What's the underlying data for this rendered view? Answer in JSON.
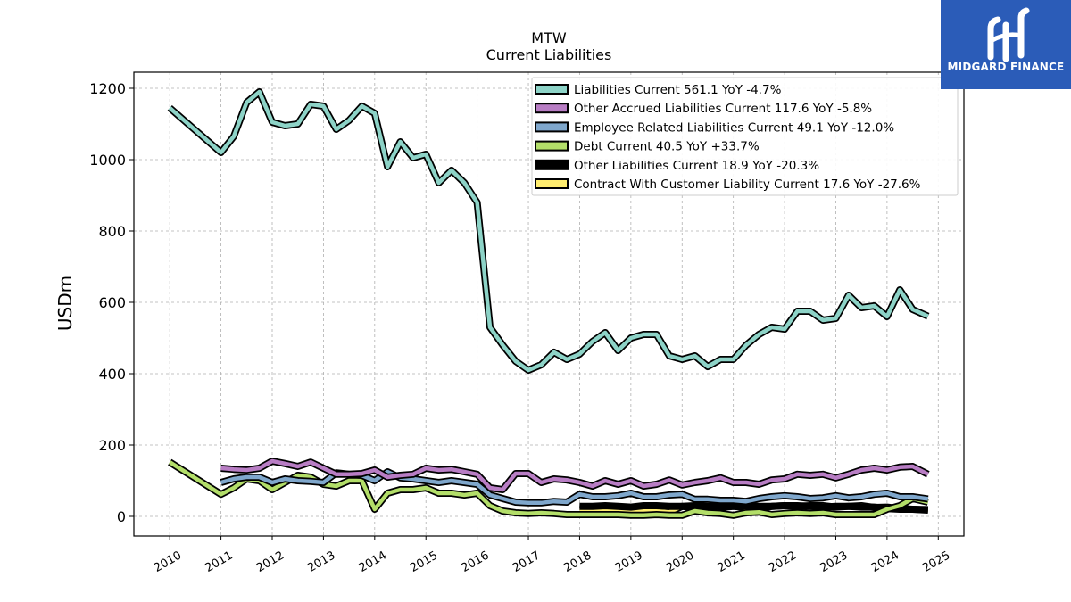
{
  "logo": {
    "text": "MIDGARD FINANCE",
    "color": "#2b5cb8"
  },
  "chart_data": {
    "type": "line",
    "title": "MTW",
    "subtitle": "Current  Liabilities",
    "xlabel": "",
    "ylabel": "USDm",
    "xlim": [
      2009.3,
      2025.5
    ],
    "ylim": [
      -55,
      1245
    ],
    "yticks": [
      0,
      200,
      400,
      600,
      800,
      1000,
      1200
    ],
    "xticks": [
      2010,
      2011,
      2012,
      2013,
      2014,
      2015,
      2016,
      2017,
      2018,
      2019,
      2020,
      2021,
      2022,
      2023,
      2024,
      2025
    ],
    "grid": true,
    "legend_position": "top-right",
    "series": [
      {
        "name": "Liabilities Current",
        "legend": "Liabilities Current  561.1 YoY -4.7%",
        "color": "#8dd3c7",
        "x": [
          2010.0,
          2011.0,
          2011.25,
          2011.5,
          2011.75,
          2012.0,
          2012.25,
          2012.5,
          2012.75,
          2013.0,
          2013.25,
          2013.5,
          2013.75,
          2014.0,
          2014.25,
          2014.5,
          2014.75,
          2015.0,
          2015.25,
          2015.5,
          2015.75,
          2016.0,
          2016.25,
          2016.5,
          2016.75,
          2017.0,
          2017.25,
          2017.5,
          2017.75,
          2018.0,
          2018.25,
          2018.5,
          2018.75,
          2019.0,
          2019.25,
          2019.5,
          2019.75,
          2020.0,
          2020.25,
          2020.5,
          2020.75,
          2021.0,
          2021.25,
          2021.5,
          2021.75,
          2022.0,
          2022.25,
          2022.5,
          2022.75,
          2023.0,
          2023.25,
          2023.5,
          2023.75,
          2024.0,
          2024.25,
          2024.5,
          2024.8
        ],
        "values": [
          1145,
          1020,
          1065,
          1160,
          1190,
          1105,
          1095,
          1100,
          1155,
          1150,
          1085,
          1110,
          1150,
          1130,
          980,
          1050,
          1005,
          1015,
          935,
          970,
          935,
          880,
          530,
          480,
          435,
          410,
          425,
          460,
          440,
          455,
          490,
          515,
          465,
          500,
          510,
          510,
          450,
          440,
          450,
          420,
          440,
          440,
          480,
          510,
          530,
          525,
          575,
          575,
          550,
          555,
          620,
          585,
          590,
          560,
          635,
          580,
          561
        ]
      },
      {
        "name": "Other Accrued Liabilities Current",
        "legend": "Other Accrued Liabilities Current  117.6 YoY -5.8%",
        "color": "#b87dc4",
        "x": [
          2011.0,
          2011.25,
          2011.5,
          2011.75,
          2012.0,
          2012.25,
          2012.5,
          2012.75,
          2013.0,
          2013.25,
          2013.5,
          2013.75,
          2014.0,
          2014.25,
          2014.5,
          2014.75,
          2015.0,
          2015.25,
          2015.5,
          2015.75,
          2016.0,
          2016.25,
          2016.5,
          2016.75,
          2017.0,
          2017.25,
          2017.5,
          2017.75,
          2018.0,
          2018.25,
          2018.5,
          2018.75,
          2019.0,
          2019.25,
          2019.5,
          2019.75,
          2020.0,
          2020.25,
          2020.5,
          2020.75,
          2021.0,
          2021.25,
          2021.5,
          2021.75,
          2022.0,
          2022.25,
          2022.5,
          2022.75,
          2023.0,
          2023.25,
          2023.5,
          2023.75,
          2024.0,
          2024.25,
          2024.5,
          2024.8
        ],
        "values": [
          135,
          132,
          130,
          135,
          155,
          148,
          140,
          152,
          135,
          118,
          118,
          120,
          130,
          110,
          115,
          118,
          135,
          130,
          132,
          125,
          118,
          80,
          75,
          120,
          120,
          95,
          105,
          102,
          95,
          85,
          100,
          90,
          100,
          85,
          90,
          102,
          88,
          95,
          100,
          108,
          95,
          95,
          90,
          102,
          105,
          118,
          115,
          118,
          108,
          118,
          130,
          135,
          130,
          138,
          140,
          118
        ]
      },
      {
        "name": "Employee Related Liabilities Current",
        "legend": "Employee Related Liabilities Current  49.1 YoY -12.0%",
        "color": "#7fa7cc",
        "x": [
          2011.0,
          2011.25,
          2011.5,
          2011.75,
          2012.0,
          2012.25,
          2012.5,
          2012.75,
          2013.0,
          2013.25,
          2013.5,
          2013.75,
          2014.0,
          2014.25,
          2014.5,
          2014.75,
          2015.0,
          2015.25,
          2015.5,
          2015.75,
          2016.0,
          2016.25,
          2016.5,
          2016.75,
          2017.0,
          2017.25,
          2017.5,
          2017.75,
          2018.0,
          2018.25,
          2018.5,
          2018.75,
          2019.0,
          2019.25,
          2019.5,
          2019.75,
          2020.0,
          2020.25,
          2020.5,
          2020.75,
          2021.0,
          2021.25,
          2021.5,
          2021.75,
          2022.0,
          2022.25,
          2022.5,
          2022.75,
          2023.0,
          2023.25,
          2023.5,
          2023.75,
          2024.0,
          2024.25,
          2024.5,
          2024.8
        ],
        "values": [
          95,
          105,
          110,
          110,
          95,
          105,
          100,
          98,
          95,
          122,
          118,
          115,
          100,
          125,
          108,
          105,
          100,
          95,
          100,
          95,
          90,
          60,
          50,
          40,
          38,
          38,
          42,
          40,
          62,
          55,
          55,
          58,
          65,
          55,
          55,
          60,
          62,
          48,
          48,
          45,
          45,
          42,
          50,
          55,
          58,
          55,
          50,
          52,
          58,
          52,
          55,
          62,
          65,
          55,
          55,
          49
        ]
      },
      {
        "name": "Debt Current",
        "legend": "Debt Current  40.5 YoY +33.7%",
        "color": "#b3de69",
        "x": [
          2010.0,
          2011.0,
          2011.25,
          2011.5,
          2011.75,
          2012.0,
          2012.25,
          2012.5,
          2012.75,
          2013.0,
          2013.25,
          2013.5,
          2013.75,
          2014.0,
          2014.25,
          2014.5,
          2014.75,
          2015.0,
          2015.25,
          2015.5,
          2015.75,
          2016.0,
          2016.25,
          2016.5,
          2016.75,
          2017.0,
          2017.25,
          2017.5,
          2017.75,
          2018.0,
          2018.25,
          2018.5,
          2018.75,
          2019.0,
          2019.25,
          2019.5,
          2019.75,
          2020.0,
          2020.25,
          2020.5,
          2020.75,
          2021.0,
          2021.25,
          2021.5,
          2021.75,
          2022.0,
          2022.25,
          2022.5,
          2022.75,
          2023.0,
          2023.25,
          2023.5,
          2023.75,
          2024.0,
          2024.25,
          2024.5,
          2024.8
        ],
        "values": [
          152,
          62,
          80,
          105,
          100,
          75,
          95,
          115,
          110,
          90,
          85,
          100,
          100,
          20,
          65,
          75,
          75,
          80,
          65,
          65,
          60,
          65,
          30,
          15,
          10,
          8,
          10,
          8,
          5,
          5,
          5,
          5,
          5,
          3,
          3,
          5,
          3,
          3,
          15,
          10,
          8,
          3,
          10,
          12,
          5,
          8,
          10,
          8,
          10,
          5,
          5,
          5,
          5,
          20,
          30,
          50,
          40
        ]
      },
      {
        "name": "Other Liabilities Current",
        "legend": "Other Liabilities Current  18.9 YoY -20.3%",
        "color": "#000000",
        "x": [
          2018.0,
          2018.25,
          2018.5,
          2018.75,
          2019.0,
          2019.25,
          2019.5,
          2019.75,
          2020.0,
          2020.25,
          2020.5,
          2020.75,
          2021.0,
          2021.25,
          2021.5,
          2021.75,
          2022.0,
          2022.25,
          2022.5,
          2022.75,
          2023.0,
          2023.25,
          2023.5,
          2023.75,
          2024.0,
          2024.25,
          2024.5,
          2024.8
        ],
        "values": [
          28,
          28,
          30,
          28,
          26,
          30,
          30,
          28,
          28,
          30,
          28,
          28,
          30,
          30,
          28,
          28,
          30,
          30,
          28,
          26,
          28,
          28,
          26,
          26,
          22,
          20,
          20,
          19
        ]
      },
      {
        "name": "Contract With Customer Liability Current",
        "legend": "Contract With Customer Liability Current  17.6 YoY -27.6%",
        "color": "#ffed6f",
        "x": [
          2018.0,
          2018.25,
          2018.5,
          2018.75,
          2019.0,
          2019.25,
          2019.5,
          2019.75,
          2020.0,
          2020.25,
          2020.5,
          2020.75,
          2021.0,
          2021.25,
          2021.5,
          2021.75,
          2022.0,
          2022.25,
          2022.5,
          2022.75,
          2023.0,
          2023.25,
          2023.5,
          2023.75,
          2024.0,
          2024.25,
          2024.5,
          2024.8
        ],
        "values": [
          15,
          15,
          16,
          14,
          12,
          16,
          15,
          12,
          28,
          25,
          20,
          25,
          28,
          25,
          22,
          28,
          30,
          28,
          30,
          30,
          26,
          28,
          30,
          25,
          26,
          22,
          20,
          17.6
        ]
      }
    ]
  }
}
